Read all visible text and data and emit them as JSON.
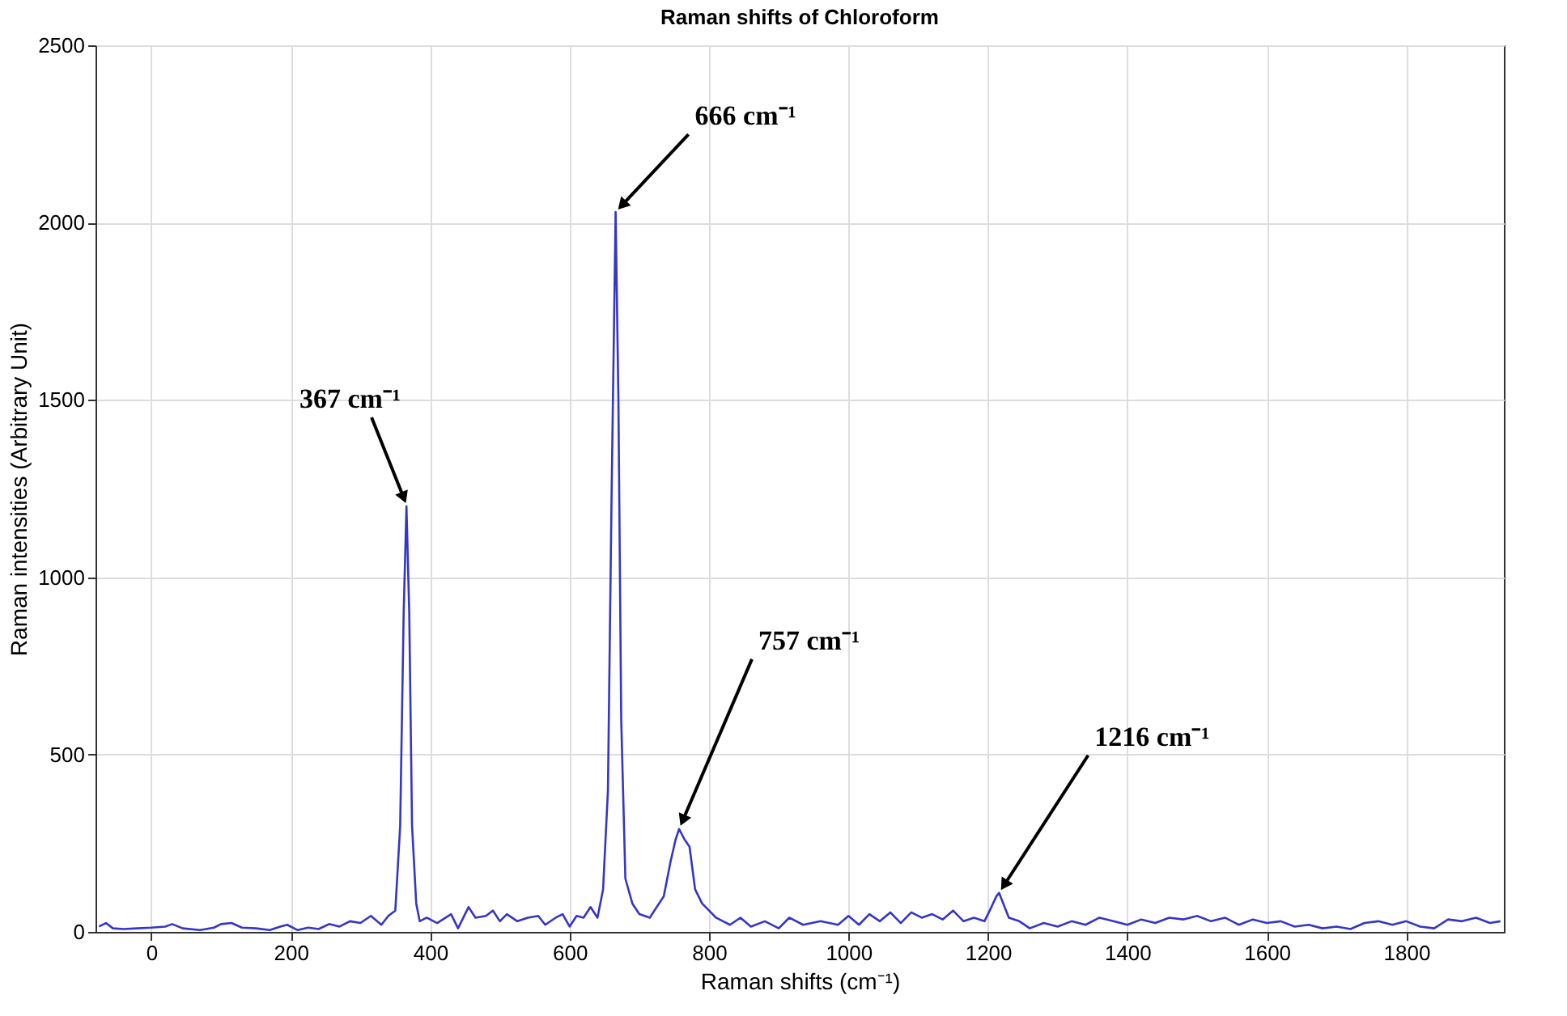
{
  "chart_data": {
    "type": "line",
    "title": "Raman shifts of Chloroform",
    "xlabel": "Raman shifts (cm⁻¹)",
    "ylabel": "Raman intensities (Arbitrary Unit)",
    "x": [
      -75,
      -65,
      -55,
      -40,
      -20,
      0,
      20,
      30,
      45,
      70,
      90,
      100,
      115,
      130,
      150,
      170,
      185,
      195,
      210,
      225,
      240,
      255,
      270,
      285,
      300,
      315,
      330,
      340,
      350,
      357,
      362,
      366,
      370,
      374,
      380,
      385,
      395,
      410,
      430,
      440,
      455,
      465,
      480,
      490,
      500,
      510,
      525,
      540,
      555,
      565,
      580,
      590,
      600,
      610,
      620,
      630,
      640,
      648,
      655,
      660,
      666,
      670,
      674,
      680,
      690,
      700,
      715,
      725,
      735,
      745,
      752,
      757,
      765,
      772,
      780,
      790,
      800,
      810,
      820,
      830,
      845,
      860,
      880,
      900,
      915,
      935,
      960,
      985,
      1000,
      1015,
      1030,
      1045,
      1060,
      1075,
      1090,
      1105,
      1120,
      1135,
      1150,
      1165,
      1180,
      1195,
      1205,
      1212,
      1216,
      1222,
      1230,
      1245,
      1260,
      1280,
      1300,
      1320,
      1340,
      1360,
      1380,
      1400,
      1420,
      1440,
      1460,
      1480,
      1500,
      1520,
      1540,
      1560,
      1580,
      1600,
      1620,
      1640,
      1660,
      1680,
      1700,
      1720,
      1740,
      1760,
      1780,
      1800,
      1820,
      1840,
      1860,
      1880,
      1900,
      1920,
      1935
    ],
    "series": [
      {
        "color": "#3535c8",
        "values": [
          15,
          25,
          10,
          8,
          10,
          12,
          15,
          22,
          10,
          5,
          12,
          22,
          25,
          12,
          10,
          5,
          15,
          20,
          5,
          12,
          8,
          22,
          15,
          30,
          25,
          45,
          20,
          45,
          60,
          300,
          900,
          1200,
          900,
          300,
          80,
          30,
          40,
          25,
          50,
          10,
          70,
          40,
          45,
          60,
          30,
          50,
          30,
          40,
          45,
          20,
          40,
          50,
          15,
          45,
          40,
          70,
          40,
          120,
          400,
          1200,
          2030,
          1500,
          600,
          150,
          80,
          50,
          40,
          70,
          100,
          200,
          260,
          290,
          260,
          240,
          120,
          80,
          60,
          40,
          30,
          20,
          40,
          15,
          30,
          10,
          40,
          20,
          30,
          20,
          45,
          20,
          50,
          30,
          55,
          25,
          55,
          40,
          50,
          35,
          60,
          30,
          40,
          30,
          70,
          100,
          110,
          80,
          40,
          30,
          10,
          25,
          15,
          30,
          20,
          40,
          30,
          20,
          35,
          25,
          40,
          35,
          45,
          30,
          40,
          20,
          35,
          25,
          30,
          15,
          20,
          10,
          15,
          8,
          25,
          30,
          20,
          30,
          15,
          10,
          35,
          30,
          40,
          25,
          30
        ]
      }
    ],
    "xlim": [
      -80,
      1940
    ],
    "ylim": [
      0,
      2500
    ],
    "xticks": [
      0,
      200,
      400,
      600,
      800,
      1000,
      1200,
      1400,
      1600,
      1800
    ],
    "yticks": [
      0,
      500,
      1000,
      1500,
      2000,
      2500
    ],
    "grid": true,
    "annotations": [
      {
        "text": "367 cm⁻¹",
        "x": 367,
        "y": 1200
      },
      {
        "text": "666 cm⁻¹",
        "x": 666,
        "y": 2030
      },
      {
        "text": "757 cm⁻¹",
        "x": 757,
        "y": 290
      },
      {
        "text": "1216 cm⁻¹",
        "x": 1216,
        "y": 110
      }
    ]
  }
}
